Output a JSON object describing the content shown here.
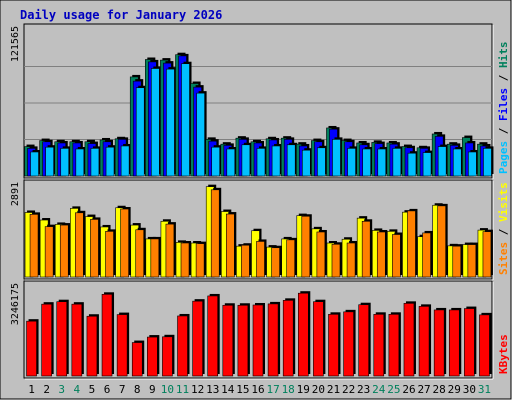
{
  "chart_data": [
    {
      "type": "bar",
      "title": "Daily usage for January 2026",
      "categories": [
        "1",
        "2",
        "3",
        "4",
        "5",
        "6",
        "7",
        "8",
        "9",
        "10",
        "11",
        "12",
        "13",
        "14",
        "15",
        "16",
        "17",
        "18",
        "19",
        "20",
        "21",
        "22",
        "23",
        "24",
        "25",
        "26",
        "27",
        "28",
        "29",
        "30",
        "31"
      ],
      "weekend_days": [
        "3",
        "4",
        "10",
        "11",
        "17",
        "18",
        "24",
        "25",
        "31"
      ],
      "ylim": [
        0,
        121565
      ],
      "ymax_label": "121565",
      "axis_label": [
        "Pages",
        "Files",
        "Hits"
      ],
      "grid": true,
      "series": [
        {
          "name": "Hits",
          "color": "#00805c",
          "values": [
            24500,
            29500,
            28500,
            28500,
            28500,
            30000,
            31000,
            82500,
            97000,
            96500,
            101000,
            77000,
            30500,
            26500,
            31500,
            28500,
            31000,
            31500,
            26500,
            29500,
            40000,
            29500,
            27500,
            28000,
            27500,
            24500,
            23500,
            35000,
            26500,
            32000,
            26500
          ]
        },
        {
          "name": "Files",
          "color": "#0000ff",
          "values": [
            23000,
            28500,
            27500,
            27500,
            27000,
            28500,
            30500,
            79000,
            95000,
            94000,
            100000,
            74000,
            29000,
            25500,
            30500,
            27500,
            30000,
            30500,
            25000,
            28500,
            39000,
            28500,
            26000,
            27000,
            26500,
            23500,
            23000,
            33000,
            25500,
            27500,
            25000
          ]
        },
        {
          "name": "Pages",
          "color": "#00c0ff",
          "values": [
            20000,
            24000,
            23000,
            22500,
            23000,
            24000,
            25000,
            73500,
            89500,
            89000,
            93500,
            69000,
            24000,
            22500,
            26000,
            23000,
            25000,
            26000,
            21500,
            23500,
            30500,
            23000,
            22500,
            22500,
            23000,
            19000,
            19500,
            24500,
            22500,
            20000,
            23000
          ]
        }
      ]
    },
    {
      "type": "bar",
      "categories": [
        "1",
        "2",
        "3",
        "4",
        "5",
        "6",
        "7",
        "8",
        "9",
        "10",
        "11",
        "12",
        "13",
        "14",
        "15",
        "16",
        "17",
        "18",
        "19",
        "20",
        "21",
        "22",
        "23",
        "24",
        "25",
        "26",
        "27",
        "28",
        "29",
        "30",
        "31"
      ],
      "ylim": [
        0,
        2891
      ],
      "ymax_label": "2891",
      "axis_label": [
        "Sites",
        "Visits"
      ],
      "series": [
        {
          "name": "Visits",
          "color": "#ffff00",
          "values": [
            2050,
            1810,
            1670,
            2180,
            1920,
            1590,
            2200,
            1650,
            1210,
            1770,
            1100,
            1080,
            2870,
            2080,
            980,
            1470,
            950,
            1210,
            1950,
            1530,
            1080,
            1200,
            1870,
            1480,
            1450,
            2060,
            1280,
            2280,
            990,
            1030,
            1490
          ]
        },
        {
          "name": "Sites",
          "color": "#ff8000",
          "values": [
            1990,
            1600,
            1650,
            2040,
            1830,
            1450,
            2160,
            1500,
            1210,
            1680,
            1080,
            1060,
            2770,
            2000,
            1010,
            1130,
            930,
            1180,
            1930,
            1430,
            1040,
            1080,
            1770,
            1430,
            1350,
            2100,
            1400,
            2260,
            980,
            1030,
            1440
          ]
        }
      ]
    },
    {
      "type": "bar",
      "categories": [
        "1",
        "2",
        "3",
        "4",
        "5",
        "6",
        "7",
        "8",
        "9",
        "10",
        "11",
        "12",
        "13",
        "14",
        "15",
        "16",
        "17",
        "18",
        "19",
        "20",
        "21",
        "22",
        "23",
        "24",
        "25",
        "26",
        "27",
        "28",
        "29",
        "30",
        "31"
      ],
      "ylim": [
        0,
        3246175
      ],
      "ymax_label": "3246175",
      "axis_label": [
        "KBytes"
      ],
      "series": [
        {
          "name": "KBytes",
          "color": "#ff0000",
          "values": [
            2000000,
            2620000,
            2710000,
            2620000,
            2180000,
            2980000,
            2240000,
            1220000,
            1420000,
            1430000,
            2190000,
            2730000,
            2920000,
            2580000,
            2580000,
            2590000,
            2630000,
            2760000,
            3020000,
            2710000,
            2250000,
            2340000,
            2600000,
            2250000,
            2250000,
            2650000,
            2540000,
            2410000,
            2410000,
            2460000,
            2230000
          ]
        }
      ]
    }
  ]
}
